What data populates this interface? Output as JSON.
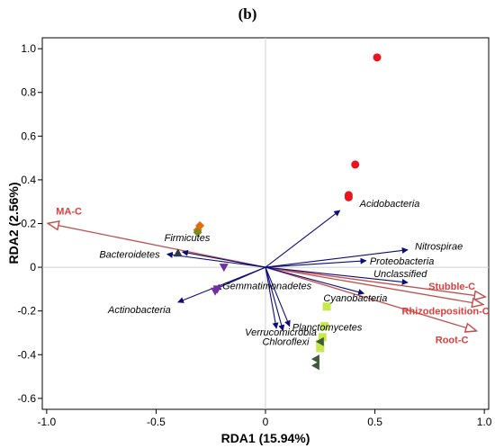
{
  "panel_label": "(b)",
  "chart_data": {
    "type": "scatter",
    "subtype": "rda-biplot",
    "xlabel": "RDA1 (15.94%)",
    "ylabel": "RDA2 (2.56%)",
    "xlim": [
      -1.02,
      1.02
    ],
    "ylim": [
      -0.65,
      1.05
    ],
    "x_ticks": [
      -1.0,
      -0.5,
      0,
      0.5,
      1.0
    ],
    "x_tick_labels": [
      "-1.0",
      "-0.5",
      "0",
      "0.5",
      "1.0"
    ],
    "y_ticks": [
      -0.6,
      -0.4,
      -0.2,
      0,
      0.2,
      0.4,
      0.6,
      0.8,
      1.0
    ],
    "y_tick_labels": [
      "-0.6",
      "-0.4",
      "-0.2",
      "0",
      "0.2",
      "0.4",
      "0.6",
      "0.8",
      "1.0"
    ],
    "reference_lines": {
      "x": 0,
      "y": 0,
      "color": "#d0d0d0"
    },
    "species_arrow_color": "#0c0c7a",
    "env_arrow_color": "#c0504d",
    "env_label_color": "#d94040",
    "species_arrows": [
      {
        "label": "Acidobacteria",
        "x": 0.34,
        "y": 0.26
      },
      {
        "label": "Nitrospirae",
        "x": 0.65,
        "y": 0.08
      },
      {
        "label": "Proteobacteria",
        "x": 0.46,
        "y": 0.03
      },
      {
        "label": "Unclassified",
        "x": 0.65,
        "y": -0.07
      },
      {
        "label": "Cyanobacteria",
        "x": 0.45,
        "y": -0.12
      },
      {
        "label": "Planctomycetes",
        "x": 0.11,
        "y": -0.27
      },
      {
        "label": "Chloroflexi",
        "x": 0.08,
        "y": -0.29
      },
      {
        "label": "Verrucomicrobia",
        "x": 0.05,
        "y": -0.28
      },
      {
        "label": "Gemmatimonadetes",
        "x": -0.23,
        "y": -0.1
      },
      {
        "label": "Actinobacteria",
        "x": -0.4,
        "y": -0.16
      },
      {
        "label": "Bacteroidetes",
        "x": -0.45,
        "y": 0.06
      },
      {
        "label": "Firmicutes",
        "x": -0.38,
        "y": 0.07
      }
    ],
    "env_arrows": [
      {
        "label": "MA-C",
        "x": -0.99,
        "y": 0.2
      },
      {
        "label": "Stubble-C",
        "x": 1.0,
        "y": -0.135
      },
      {
        "label": "Rhizodeposition-C",
        "x": 0.99,
        "y": -0.17
      },
      {
        "label": "Root-C",
        "x": 0.96,
        "y": -0.29
      }
    ],
    "sample_groups": [
      {
        "marker": "circle",
        "color": "#e8151f",
        "points": [
          [
            0.51,
            0.96
          ],
          [
            0.41,
            0.47
          ],
          [
            0.38,
            0.33
          ],
          [
            0.38,
            0.32
          ]
        ]
      },
      {
        "marker": "diamond",
        "color": "#e36c0a",
        "points": [
          [
            -0.3,
            0.19
          ],
          [
            -0.31,
            0.17
          ]
        ]
      },
      {
        "marker": "diamond",
        "color": "#7b8a1e",
        "points": [
          [
            -0.31,
            0.16
          ]
        ]
      },
      {
        "marker": "triangle-up",
        "color": "#2d3a4f",
        "points": [
          [
            -0.4,
            0.065
          ]
        ]
      },
      {
        "marker": "triangle-down",
        "color": "#7030a0",
        "points": [
          [
            -0.19,
            0.0
          ],
          [
            -0.22,
            -0.1
          ],
          [
            -0.23,
            -0.11
          ]
        ]
      },
      {
        "marker": "square",
        "color": "#c9e84f",
        "points": [
          [
            0.28,
            -0.18
          ],
          [
            0.27,
            -0.27
          ],
          [
            0.26,
            -0.32
          ],
          [
            0.25,
            -0.35
          ],
          [
            0.25,
            -0.37
          ]
        ]
      },
      {
        "marker": "triangle-left",
        "color": "#3d5a3a",
        "points": [
          [
            0.25,
            -0.34
          ],
          [
            0.23,
            -0.42
          ],
          [
            0.23,
            -0.45
          ]
        ]
      }
    ]
  }
}
